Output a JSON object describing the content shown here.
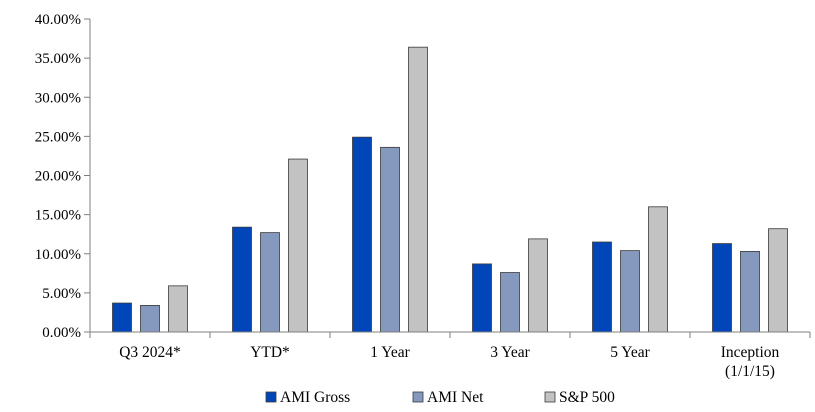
{
  "chart_data": {
    "type": "bar",
    "title": "",
    "xlabel": "",
    "ylabel": "",
    "categories": [
      [
        "Q3 2024*"
      ],
      [
        "YTD*"
      ],
      [
        "1 Year"
      ],
      [
        "3 Year"
      ],
      [
        "5 Year"
      ],
      [
        "Inception",
        "(1/1/15)"
      ]
    ],
    "series": [
      {
        "name": "AMI Gross",
        "color": "#0046b8",
        "values": [
          3.7,
          13.4,
          24.9,
          8.7,
          11.5,
          11.3
        ]
      },
      {
        "name": "AMI Net",
        "color": "#8499bd",
        "values": [
          3.4,
          12.7,
          23.6,
          7.6,
          10.4,
          10.3
        ]
      },
      {
        "name": "S&P 500",
        "color": "#c2c2c2",
        "values": [
          5.9,
          22.1,
          36.4,
          11.9,
          16.0,
          13.2
        ]
      }
    ],
    "ylim": [
      0,
      40
    ],
    "y_ticks": [
      "0.00%",
      "5.00%",
      "10.00%",
      "15.00%",
      "20.00%",
      "25.00%",
      "30.00%",
      "35.00%",
      "40.00%"
    ],
    "y_tick_values": [
      0,
      5,
      10,
      15,
      20,
      25,
      30,
      35,
      40
    ],
    "grid": false,
    "legend_position": "bottom"
  }
}
